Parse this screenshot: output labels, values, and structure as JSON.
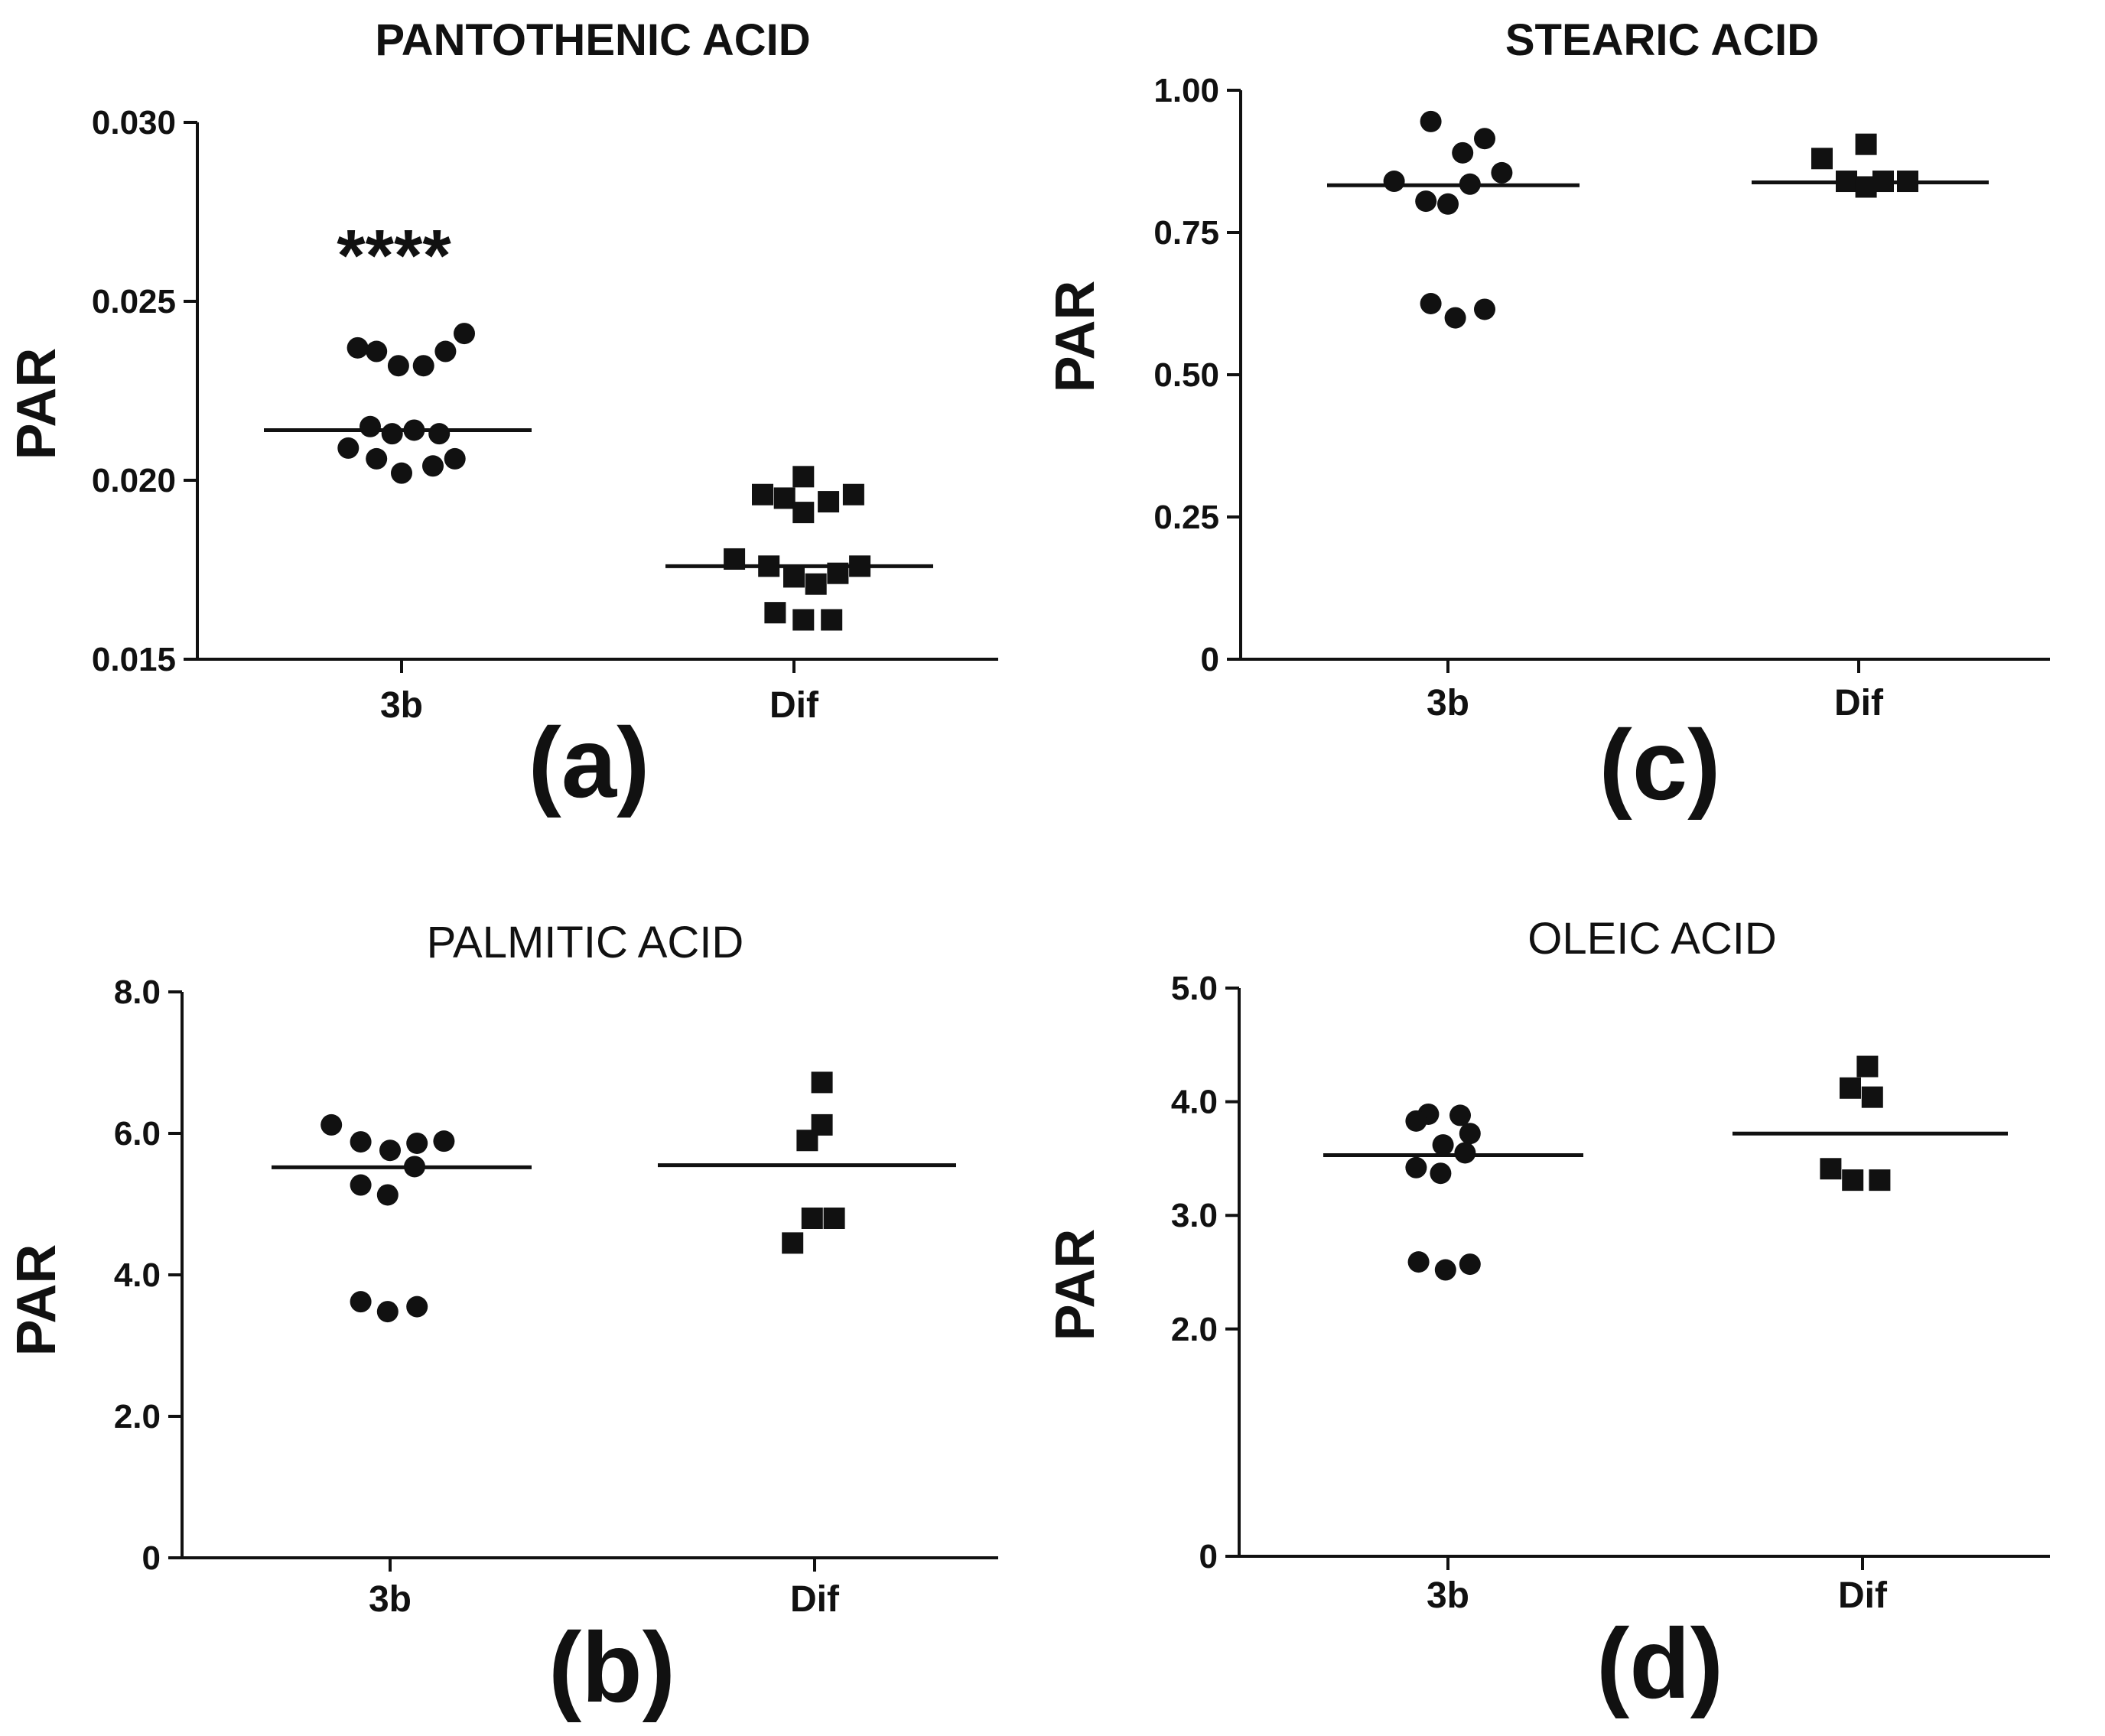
{
  "chart_data": [
    {
      "type": "scatter",
      "panel_label": "(a)",
      "title": "PANTOTHENIC ACID",
      "title_bold": true,
      "ylabel": "PAR",
      "xlabel": "",
      "ylim": [
        0.015,
        0.03
      ],
      "yticks": [
        "0.015",
        "0.020",
        "0.025",
        "0.030"
      ],
      "categories": [
        "3b",
        "Dif"
      ],
      "significance": {
        "category": "3b",
        "label": "****"
      },
      "series": [
        {
          "name": "3b",
          "marker": "circle",
          "mean": 0.0214,
          "points": [
            [
              -0.28,
              0.0237
            ],
            [
              -0.16,
              0.0236
            ],
            [
              -0.02,
              0.0232
            ],
            [
              0.14,
              0.0232
            ],
            [
              0.28,
              0.0236
            ],
            [
              0.4,
              0.0241
            ],
            [
              -0.2,
              0.0215
            ],
            [
              -0.06,
              0.0213
            ],
            [
              0.08,
              0.0214
            ],
            [
              0.24,
              0.0213
            ],
            [
              -0.34,
              0.0209
            ],
            [
              -0.16,
              0.0206
            ],
            [
              0.0,
              0.0202
            ],
            [
              0.2,
              0.0204
            ],
            [
              0.34,
              0.0206
            ]
          ]
        },
        {
          "name": "Dif",
          "marker": "square",
          "mean": 0.0176,
          "points": [
            [
              -0.2,
              0.0196
            ],
            [
              -0.06,
              0.0195
            ],
            [
              0.06,
              0.0201
            ],
            [
              0.06,
              0.0191
            ],
            [
              0.22,
              0.0194
            ],
            [
              0.38,
              0.0196
            ],
            [
              -0.38,
              0.0178
            ],
            [
              -0.16,
              0.0176
            ],
            [
              0.0,
              0.0173
            ],
            [
              0.14,
              0.0171
            ],
            [
              0.28,
              0.0174
            ],
            [
              0.42,
              0.0176
            ],
            [
              -0.12,
              0.0163
            ],
            [
              0.06,
              0.0161
            ],
            [
              0.24,
              0.0161
            ]
          ]
        }
      ]
    },
    {
      "type": "scatter",
      "panel_label": "(c)",
      "title": "STEARIC ACID",
      "title_bold": true,
      "ylabel": "PAR",
      "xlabel": "",
      "ylim": [
        0,
        1.0
      ],
      "yticks": [
        "0",
        "0.25",
        "0.50",
        "0.75",
        "1.00"
      ],
      "categories": [
        "3b",
        "Dif"
      ],
      "series": [
        {
          "name": "3b",
          "marker": "circle",
          "mean": 0.833,
          "points": [
            [
              -0.14,
              0.945
            ],
            [
              0.12,
              0.89
            ],
            [
              0.3,
              0.915
            ],
            [
              -0.44,
              0.84
            ],
            [
              -0.18,
              0.805
            ],
            [
              0.0,
              0.8
            ],
            [
              0.18,
              0.835
            ],
            [
              0.44,
              0.855
            ],
            [
              -0.14,
              0.625
            ],
            [
              0.06,
              0.6
            ],
            [
              0.3,
              0.615
            ]
          ]
        },
        {
          "name": "Dif",
          "marker": "square",
          "mean": 0.838,
          "points": [
            [
              -0.3,
              0.88
            ],
            [
              -0.1,
              0.84
            ],
            [
              0.06,
              0.83
            ],
            [
              0.06,
              0.905
            ],
            [
              0.2,
              0.84
            ],
            [
              0.4,
              0.84
            ]
          ]
        }
      ]
    },
    {
      "type": "scatter",
      "panel_label": "(b)",
      "title": "PALMITIC ACID",
      "title_bold": false,
      "ylabel": "PAR",
      "xlabel": "",
      "ylim": [
        0,
        8.0
      ],
      "yticks": [
        "0",
        "2.0",
        "4.0",
        "6.0",
        "8.0"
      ],
      "categories": [
        "3b",
        "Dif"
      ],
      "series": [
        {
          "name": "3b",
          "marker": "circle",
          "mean": 5.52,
          "points": [
            [
              -0.48,
              6.12
            ],
            [
              -0.24,
              5.88
            ],
            [
              0.0,
              5.76
            ],
            [
              0.22,
              5.86
            ],
            [
              0.44,
              5.89
            ],
            [
              -0.24,
              5.27
            ],
            [
              -0.02,
              5.13
            ],
            [
              0.2,
              5.53
            ],
            [
              -0.24,
              3.62
            ],
            [
              -0.02,
              3.48
            ],
            [
              0.22,
              3.55
            ]
          ]
        },
        {
          "name": "Dif",
          "marker": "square",
          "mean": 5.55,
          "points": [
            [
              0.06,
              6.72
            ],
            [
              0.06,
              6.12
            ],
            [
              -0.06,
              5.9
            ],
            [
              -0.18,
              4.45
            ],
            [
              -0.02,
              4.8
            ],
            [
              0.16,
              4.8
            ]
          ]
        }
      ]
    },
    {
      "type": "scatter",
      "panel_label": "(d)",
      "title": "OLEIC ACID",
      "title_bold": false,
      "ylabel": "PAR",
      "xlabel": "",
      "ylim": [
        0,
        5.0
      ],
      "yticks": [
        "0",
        "2.0",
        "3.0",
        "4.0",
        "5.0"
      ],
      "categories": [
        "3b",
        "Dif"
      ],
      "series": [
        {
          "name": "3b",
          "marker": "circle",
          "mean": 3.53,
          "points": [
            [
              -0.16,
              3.89
            ],
            [
              0.1,
              3.88
            ],
            [
              -0.26,
              3.83
            ],
            [
              0.18,
              3.72
            ],
            [
              -0.04,
              3.62
            ],
            [
              0.14,
              3.55
            ],
            [
              -0.26,
              3.42
            ],
            [
              -0.06,
              3.37
            ],
            [
              -0.24,
              2.59
            ],
            [
              -0.02,
              2.52
            ],
            [
              0.18,
              2.57
            ]
          ]
        },
        {
          "name": "Dif",
          "marker": "square",
          "mean": 3.72,
          "points": [
            [
              0.04,
              4.31
            ],
            [
              -0.1,
              4.12
            ],
            [
              0.08,
              4.04
            ],
            [
              -0.26,
              3.41
            ],
            [
              -0.08,
              3.31
            ],
            [
              0.14,
              3.31
            ]
          ]
        }
      ]
    }
  ]
}
